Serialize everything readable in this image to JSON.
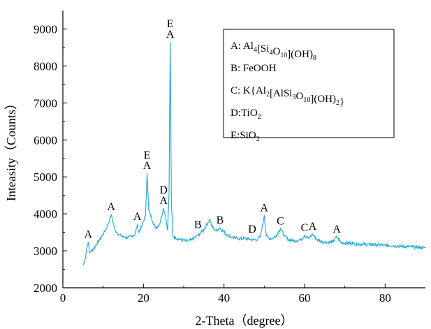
{
  "chart_data": {
    "type": "line",
    "title": "",
    "xlabel": "2-Theta（degree）",
    "ylabel": "Inteasity（Counts）",
    "xlim": [
      0,
      90
    ],
    "ylim": [
      2000,
      9500
    ],
    "xticks": [
      0,
      20,
      40,
      60,
      80
    ],
    "yticks": [
      2000,
      3000,
      4000,
      5000,
      6000,
      7000,
      8000,
      9000
    ],
    "grid": false,
    "line_color": "#1aa7d9",
    "series": [
      {
        "values": [
          [
            5.0,
            2600
          ],
          [
            5.5,
            2760
          ],
          [
            6.0,
            3100
          ],
          [
            6.3,
            3240
          ],
          [
            6.6,
            2950
          ],
          [
            7.2,
            3000
          ],
          [
            8.0,
            3120
          ],
          [
            9.0,
            3280
          ],
          [
            10.0,
            3450
          ],
          [
            11.0,
            3650
          ],
          [
            11.6,
            3850
          ],
          [
            12.0,
            3980
          ],
          [
            12.5,
            3750
          ],
          [
            13.0,
            3550
          ],
          [
            14.0,
            3430
          ],
          [
            15.0,
            3380
          ],
          [
            16.0,
            3360
          ],
          [
            17.0,
            3380
          ],
          [
            18.0,
            3460
          ],
          [
            18.5,
            3720
          ],
          [
            18.8,
            3500
          ],
          [
            19.5,
            3650
          ],
          [
            20.5,
            3950
          ],
          [
            20.9,
            5100
          ],
          [
            21.3,
            4100
          ],
          [
            22.0,
            3880
          ],
          [
            23.0,
            3620
          ],
          [
            24.0,
            3720
          ],
          [
            25.0,
            4150
          ],
          [
            25.5,
            3950
          ],
          [
            26.0,
            3550
          ],
          [
            26.35,
            4550
          ],
          [
            26.65,
            8650
          ],
          [
            26.95,
            4300
          ],
          [
            27.3,
            3400
          ],
          [
            28.0,
            3360
          ],
          [
            29.0,
            3300
          ],
          [
            30.0,
            3280
          ],
          [
            31.0,
            3260
          ],
          [
            32.0,
            3300
          ],
          [
            33.0,
            3380
          ],
          [
            34.0,
            3460
          ],
          [
            35.0,
            3580
          ],
          [
            36.0,
            3760
          ],
          [
            36.5,
            3850
          ],
          [
            37.0,
            3650
          ],
          [
            38.0,
            3540
          ],
          [
            39.0,
            3620
          ],
          [
            40.0,
            3500
          ],
          [
            41.0,
            3420
          ],
          [
            42.0,
            3370
          ],
          [
            43.0,
            3340
          ],
          [
            44.0,
            3320
          ],
          [
            45.0,
            3340
          ],
          [
            46.0,
            3320
          ],
          [
            47.0,
            3300
          ],
          [
            48.0,
            3300
          ],
          [
            49.0,
            3380
          ],
          [
            50.0,
            3960
          ],
          [
            50.5,
            3400
          ],
          [
            51.0,
            3350
          ],
          [
            52.0,
            3330
          ],
          [
            53.0,
            3420
          ],
          [
            54.0,
            3600
          ],
          [
            55.0,
            3400
          ],
          [
            56.0,
            3300
          ],
          [
            57.0,
            3280
          ],
          [
            58.0,
            3270
          ],
          [
            59.0,
            3300
          ],
          [
            60.0,
            3420
          ],
          [
            61.0,
            3330
          ],
          [
            62.0,
            3450
          ],
          [
            63.0,
            3310
          ],
          [
            64.0,
            3260
          ],
          [
            65.0,
            3240
          ],
          [
            66.0,
            3230
          ],
          [
            67.0,
            3240
          ],
          [
            68.0,
            3380
          ],
          [
            69.0,
            3230
          ],
          [
            70.0,
            3210
          ],
          [
            72.0,
            3200
          ],
          [
            74.0,
            3180
          ],
          [
            76.0,
            3170
          ],
          [
            78.0,
            3160
          ],
          [
            80.0,
            3150
          ],
          [
            82.0,
            3140
          ],
          [
            84.0,
            3120
          ],
          [
            86.0,
            3110
          ],
          [
            88.0,
            3100
          ],
          [
            90.0,
            3080
          ]
        ]
      }
    ],
    "peak_labels": [
      {
        "text": "A",
        "x": 6.3,
        "y": 3240
      },
      {
        "text": "A",
        "x": 12.0,
        "y": 3980
      },
      {
        "text": "A",
        "x": 18.5,
        "y": 3720
      },
      {
        "text": "A",
        "x": 20.9,
        "y": 5100
      },
      {
        "text": "E",
        "x": 20.9,
        "y": 5100,
        "stack": 1
      },
      {
        "text": "A",
        "x": 25.0,
        "y": 4150
      },
      {
        "text": "D",
        "x": 25.0,
        "y": 4150,
        "stack": 1
      },
      {
        "text": "A",
        "x": 26.65,
        "y": 8650
      },
      {
        "text": "E",
        "x": 26.65,
        "y": 8650,
        "stack": 1
      },
      {
        "text": "B",
        "x": 33.5,
        "y": 3500
      },
      {
        "text": "B",
        "x": 39.0,
        "y": 3620
      },
      {
        "text": "D",
        "x": 47.0,
        "y": 3380
      },
      {
        "text": "A",
        "x": 50.0,
        "y": 3960
      },
      {
        "text": "C",
        "x": 54.0,
        "y": 3600
      },
      {
        "text": "C",
        "x": 60.0,
        "y": 3420
      },
      {
        "text": "A",
        "x": 62.0,
        "y": 3450
      },
      {
        "text": "A",
        "x": 68.0,
        "y": 3380
      }
    ],
    "legend": {
      "placement": "top-right",
      "entries": [
        {
          "label": "A",
          "parts": [
            [
              ": Al",
              ""
            ],
            [
              "4",
              "sub"
            ],
            [
              "[Si",
              ""
            ],
            [
              "4",
              "sub"
            ],
            [
              "O",
              ""
            ],
            [
              "10",
              "sub"
            ],
            [
              "](OH)",
              ""
            ],
            [
              "8",
              "sub"
            ]
          ]
        },
        {
          "label": "B",
          "parts": [
            [
              ": FeOOH",
              ""
            ]
          ]
        },
        {
          "label": "C",
          "parts": [
            [
              ": K{Al",
              ""
            ],
            [
              "2",
              "sub"
            ],
            [
              "[AlSi",
              ""
            ],
            [
              "3",
              "sub"
            ],
            [
              "O",
              ""
            ],
            [
              "10",
              "sub"
            ],
            [
              "](OH)",
              ""
            ],
            [
              "2",
              "sub"
            ],
            [
              "}",
              ""
            ]
          ]
        },
        {
          "label": "D",
          "parts": [
            [
              ":TiO",
              ""
            ],
            [
              "2",
              "sub"
            ]
          ]
        },
        {
          "label": "E",
          "parts": [
            [
              ":SiO",
              ""
            ],
            [
              "2",
              "sub"
            ]
          ]
        }
      ]
    }
  }
}
